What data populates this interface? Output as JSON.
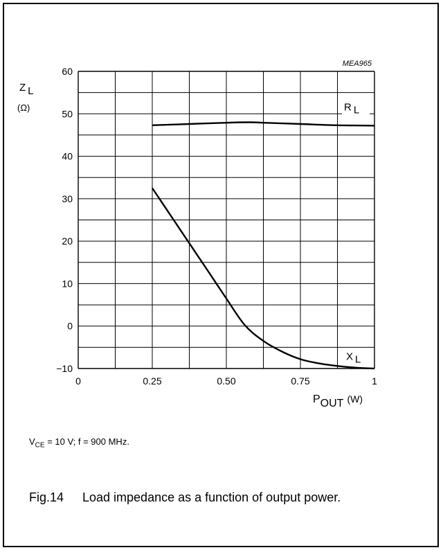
{
  "chart_data": {
    "type": "line",
    "code": "MEA965",
    "x_ticks": [
      "0",
      "0.25",
      "0.50",
      "0.75",
      "1"
    ],
    "y_ticks": [
      "60",
      "50",
      "40",
      "30",
      "20",
      "10",
      "0",
      "−10"
    ],
    "xlim": [
      0,
      1
    ],
    "ylim": [
      -10,
      60
    ],
    "grid": true,
    "ylabel": {
      "main": "Z",
      "sub": "L",
      "unit": "(Ω)"
    },
    "xlabel": {
      "main": "P",
      "sub": "OUT",
      "unit": "(W)"
    },
    "series": [
      {
        "name": "R",
        "name_sub": "L",
        "color": "#000000",
        "x": [
          0.25,
          0.375,
          0.5,
          0.58,
          0.625,
          0.75,
          0.875,
          1.0
        ],
        "y": [
          47.3,
          47.6,
          47.9,
          48.0,
          47.9,
          47.6,
          47.3,
          47.2
        ]
      },
      {
        "name": "X",
        "name_sub": "L",
        "color": "#000000",
        "x": [
          0.25,
          0.3125,
          0.375,
          0.4375,
          0.5,
          0.5625,
          0.625,
          0.6875,
          0.75,
          0.8125,
          0.875,
          0.9375,
          1.0
        ],
        "y": [
          32.5,
          26.0,
          19.5,
          13.0,
          6.5,
          0.2,
          -3.5,
          -6.0,
          -7.8,
          -8.8,
          -9.4,
          -9.8,
          -10.0
        ]
      }
    ]
  },
  "conditions": {
    "v": "V",
    "v_sub": "CE",
    "rest": " = 10 V; f = 900 MHz."
  },
  "caption": {
    "number": "Fig.14",
    "text": "Load impedance as a function of output power."
  }
}
